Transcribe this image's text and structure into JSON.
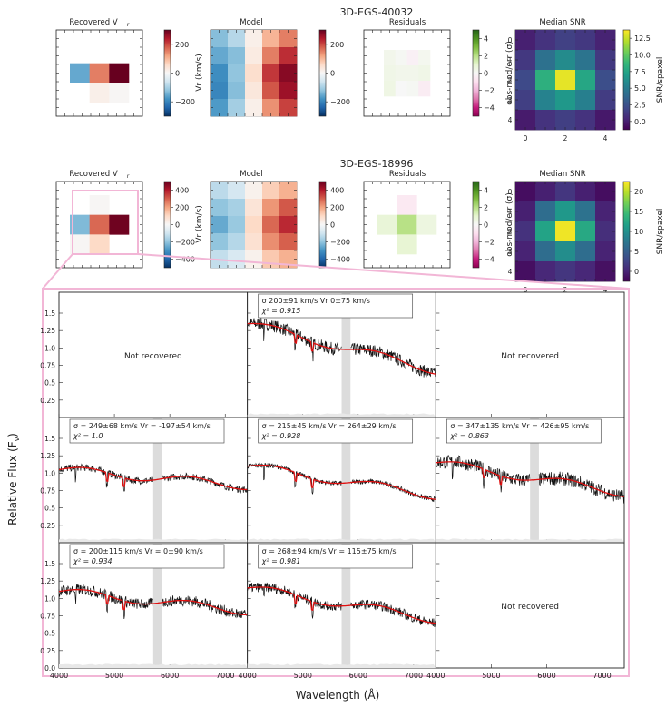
{
  "chart_data": {
    "type": "figure",
    "galaxies": [
      {
        "name": "3D-EGS-40032",
        "panels": {
          "recovered": {
            "title": "Recovered V",
            "title_sub": "r",
            "grid": [
              [
                null,
                null,
                null
              ],
              [
                -180,
                180,
                400
              ],
              [
                null,
                20,
                5
              ]
            ],
            "cbar": {
              "label": "",
              "ticks": [
                "200",
                "0",
                "−200"
              ],
              "range": [
                -350,
                350
              ]
            }
          },
          "model": {
            "title": "Model",
            "grid": [
              [
                -150,
                -100,
                20,
                120,
                180
              ],
              [
                -180,
                -150,
                30,
                180,
                260
              ],
              [
                -220,
                -140,
                60,
                250,
                320
              ],
              [
                -230,
                -150,
                40,
                220,
                300
              ],
              [
                -200,
                -120,
                20,
                160,
                240
              ]
            ],
            "cbar": {
              "label": "Vr (km/s)",
              "ticks": [
                "200",
                "0",
                "−200"
              ],
              "range": [
                -350,
                350
              ]
            }
          },
          "residuals": {
            "title": "Residuals",
            "grid": [
              [
                0.3,
                0.1,
                -0.3,
                0.2
              ],
              [
                0.4,
                0.3,
                0.3,
                0.4
              ],
              [
                0.5,
                0.0,
                0.1,
                -0.5
              ]
            ],
            "cbar": {
              "label": "obs-mod/err (σ)",
              "ticks": [
                "4",
                "2",
                "0",
                "−2",
                "−4"
              ],
              "range": [
                -5,
                5
              ]
            }
          },
          "snr": {
            "title": "Median SNR",
            "grid": [
              [
                1.2,
                2.0,
                2.6,
                2.2,
                1.3
              ],
              [
                2.2,
                5.0,
                6.5,
                5.2,
                2.2
              ],
              [
                3.0,
                8.5,
                13.0,
                8.0,
                3.2
              ],
              [
                2.5,
                6.0,
                7.2,
                5.8,
                2.4
              ],
              [
                1.0,
                2.0,
                2.5,
                2.0,
                0.9
              ]
            ],
            "xticks": [
              "0",
              "2",
              "4"
            ],
            "yticks": [
              "0",
              "1",
              "2",
              "3",
              "4"
            ],
            "cbar": {
              "label": "SNR/spaxel",
              "ticks": [
                "12.5",
                "10.0",
                "7.5",
                "5.0",
                "2.5",
                "0.0"
              ],
              "range": [
                0,
                13.5
              ]
            }
          }
        }
      },
      {
        "name": "3D-EGS-18996",
        "panels": {
          "recovered": {
            "title": "Recovered V",
            "title_sub": "r",
            "grid": [
              [
                null,
                5,
                null
              ],
              [
                -200,
                260,
                440
              ],
              [
                5,
                90,
                null
              ]
            ],
            "cbar": {
              "label": "",
              "ticks": [
                "400",
                "200",
                "0",
                "−200",
                "−400"
              ],
              "range": [
                -450,
                450
              ]
            }
          },
          "model": {
            "title": "Model",
            "grid": [
              [
                -120,
                -80,
                20,
                110,
                160
              ],
              [
                -180,
                -150,
                60,
                200,
                280
              ],
              [
                -230,
                -170,
                90,
                260,
                340
              ],
              [
                -180,
                -130,
                70,
                210,
                270
              ],
              [
                -110,
                -70,
                20,
                120,
                160
              ]
            ],
            "cbar": {
              "label": "Vr (km/s)",
              "ticks": [
                "400",
                "200",
                "0",
                "−200",
                "−400"
              ],
              "range": [
                -450,
                450
              ]
            }
          },
          "residuals": {
            "title": "Residuals",
            "grid": [
              [
                null,
                -0.6,
                null
              ],
              [
                0.8,
                2.0,
                0.6
              ],
              [
                null,
                0.9,
                null
              ]
            ],
            "cbar": {
              "label": "obs-mod/err (σ)",
              "ticks": [
                "4",
                "2",
                "0",
                "−2",
                "−4"
              ],
              "range": [
                -5,
                5
              ]
            }
          },
          "snr": {
            "title": "Median SNR",
            "grid": [
              [
                0.8,
                2.0,
                3.5,
                2.0,
                0.8
              ],
              [
                2.0,
                8.0,
                12.0,
                8.5,
                2.2
              ],
              [
                3.2,
                13.0,
                22.0,
                13.5,
                3.0
              ],
              [
                2.2,
                8.0,
                11.0,
                8.0,
                2.2
              ],
              [
                0.9,
                2.5,
                3.5,
                2.5,
                1.0
              ]
            ],
            "xticks": [
              "0",
              "2",
              "4"
            ],
            "yticks": [
              "0",
              "1",
              "2",
              "3",
              "4"
            ],
            "cbar": {
              "label": "SNR/spaxel",
              "ticks": [
                "20",
                "15",
                "10",
                "5",
                "0"
              ],
              "range": [
                0,
                22.5
              ]
            }
          }
        }
      }
    ],
    "spectra": {
      "xlabel": "Wavelength (Å)",
      "ylabel": "Relative Flux (F",
      "ylabel_sub": "ν",
      "ylabel_close": ")",
      "xlim": [
        4000,
        7400
      ],
      "ylim": [
        0.0,
        1.8
      ],
      "xticks": [
        4000,
        5000,
        6000,
        7000
      ],
      "xtick_labels": [
        "4000",
        "5000",
        "6000",
        "7000"
      ],
      "yticks": [
        0.0,
        0.25,
        0.5,
        0.75,
        1.0,
        1.25,
        1.5
      ],
      "ytick_labels": [
        "0.0",
        "0.25",
        "0.5",
        "0.75",
        "1.0",
        "1.25",
        "1.5"
      ],
      "masked_band": [
        5700,
        5860
      ],
      "not_recovered_text": "Not recovered",
      "panels": [
        {
          "recovered": false
        },
        {
          "recovered": true,
          "info_line1": "σ    200±91 km/s Vr     0±75 km/s",
          "info_line2": "χ² = 0.915",
          "start": 1.35,
          "end": 0.68,
          "noise": 0.09
        },
        {
          "recovered": false
        },
        {
          "recovered": true,
          "info_line1": "σ = 249±68 km/s Vr = -197±54 km/s",
          "info_line2": "χ² = 1.0",
          "start": 1.05,
          "end": 0.82,
          "noise": 0.05
        },
        {
          "recovered": true,
          "info_line1": "σ = 215±45 km/s Vr = 264±29 km/s",
          "info_line2": "χ² = 0.928",
          "start": 1.1,
          "end": 0.68,
          "noise": 0.035
        },
        {
          "recovered": true,
          "info_line1": "σ = 347±135 km/s Vr = 426±95 km/s",
          "info_line2": "χ² = 0.863",
          "start": 1.15,
          "end": 0.72,
          "noise": 0.1
        },
        {
          "recovered": true,
          "info_line1": "σ = 200±115 km/s Vr = 0±90 km/s",
          "info_line2": "χ² = 0.934",
          "start": 1.1,
          "end": 0.82,
          "noise": 0.08
        },
        {
          "recovered": true,
          "info_line1": "σ = 268±94 km/s Vr = 115±75 km/s",
          "info_line2": "χ² = 0.981",
          "start": 1.15,
          "end": 0.7,
          "noise": 0.07
        },
        {
          "recovered": false
        }
      ]
    }
  }
}
